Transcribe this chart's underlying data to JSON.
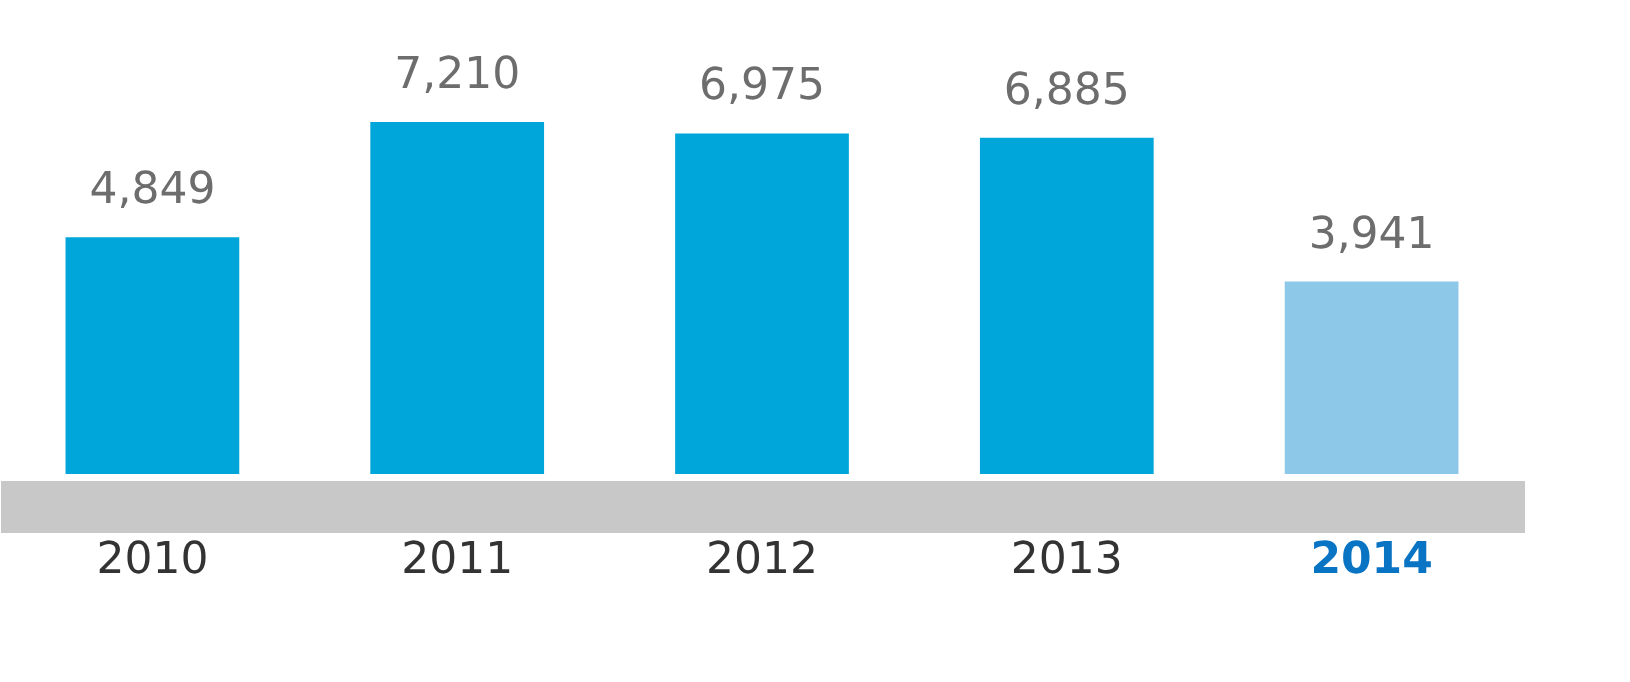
{
  "chart_data": {
    "type": "bar",
    "categories": [
      "2010",
      "2011",
      "2012",
      "2013",
      "2014"
    ],
    "values": [
      4849,
      7210,
      6975,
      6885,
      3941
    ],
    "value_labels": [
      "4,849",
      "7,210",
      "6,975",
      "6,885",
      "3,941"
    ],
    "colors": [
      "#00a5d9",
      "#00a5d9",
      "#00a5d9",
      "#00a5d9",
      "#8dc8e8"
    ],
    "grid": false
  }
}
